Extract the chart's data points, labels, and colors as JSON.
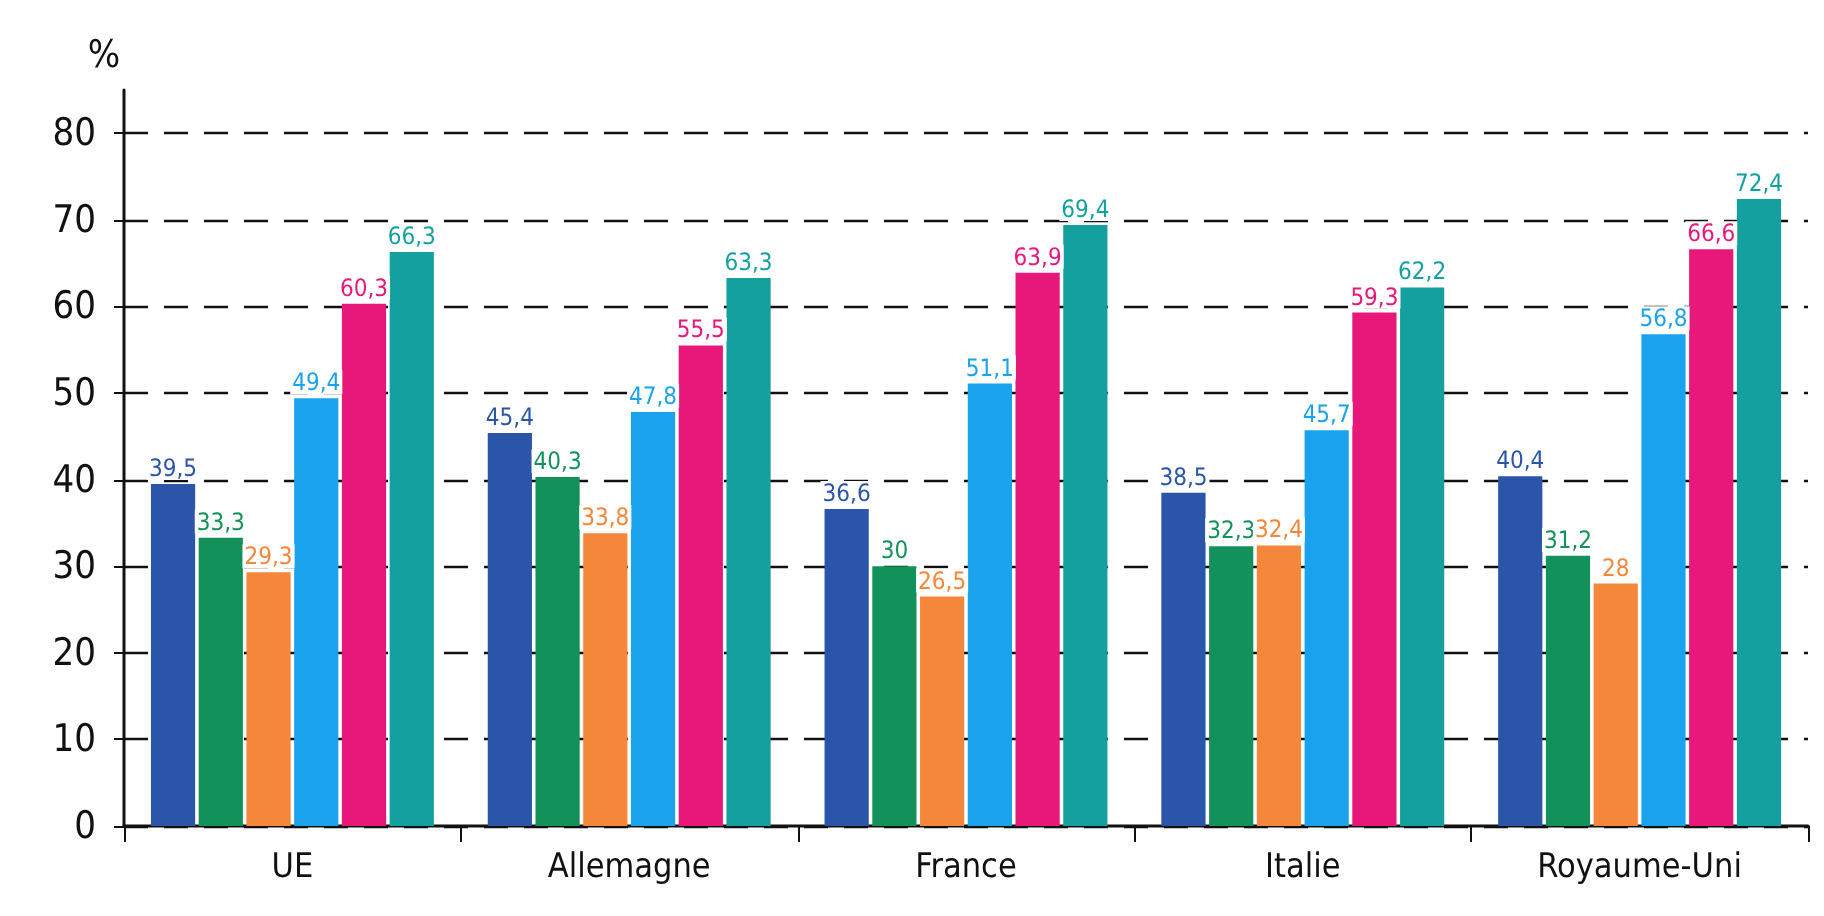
{
  "chart_data": {
    "type": "bar",
    "ylabel": "%",
    "categories": [
      "UE",
      "Allemagne",
      "France",
      "Italie",
      "Royaume-Uni"
    ],
    "series": [
      {
        "color": "#2a55a8",
        "values": [
          39.5,
          45.4,
          36.6,
          38.5,
          40.4
        ],
        "value_labels": [
          "39,5",
          "45,4",
          "36,6",
          "38,5",
          "40,4"
        ]
      },
      {
        "color": "#13915a",
        "values": [
          33.3,
          40.3,
          30,
          32.3,
          31.2
        ],
        "value_labels": [
          "33,3",
          "40,3",
          "30",
          "32,3",
          "31,2"
        ]
      },
      {
        "color": "#f5873a",
        "values": [
          29.3,
          33.8,
          26.5,
          32.4,
          28
        ],
        "value_labels": [
          "29,3",
          "33,8",
          "26,5",
          "32,4",
          "28"
        ]
      },
      {
        "color": "#1aa3ec",
        "values": [
          49.4,
          47.8,
          51.1,
          45.7,
          56.8
        ],
        "value_labels": [
          "49,4",
          "47,8",
          "51,1",
          "45,7",
          "56,8"
        ]
      },
      {
        "color": "#e8177a",
        "values": [
          60.3,
          55.5,
          63.9,
          59.3,
          66.6
        ],
        "value_labels": [
          "60,3",
          "55,5",
          "63,9",
          "59,3",
          "66,6"
        ]
      },
      {
        "color": "#14a09f",
        "values": [
          66.3,
          63.3,
          69.4,
          62.2,
          72.4
        ],
        "value_labels": [
          "66,3",
          "63,3",
          "69,4",
          "62,2",
          "72,4"
        ]
      }
    ],
    "ylim": [
      0,
      85
    ],
    "yticks": [
      0,
      10,
      20,
      30,
      40,
      50,
      60,
      70,
      80
    ],
    "grid": "y"
  }
}
